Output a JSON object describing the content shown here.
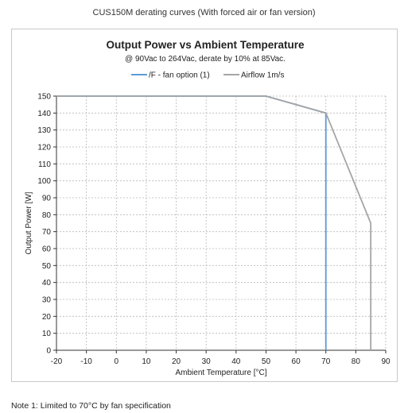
{
  "caption": "CUS150M derating curves (With forced air or fan version)",
  "note": "Note 1:  Limited to 70°C by fan specification",
  "chart_data": {
    "type": "line",
    "title": "Output Power vs Ambient Temperature",
    "subtitle": "@ 90Vac to 264Vac, derate by 10% at 85Vac.",
    "xlabel": "Ambient Temperature [°C]",
    "ylabel": "Output Power [W]",
    "xlim": [
      -20,
      90
    ],
    "ylim": [
      0,
      150
    ],
    "xticks": [
      -20,
      -10,
      0,
      10,
      20,
      30,
      40,
      50,
      60,
      70,
      80,
      90
    ],
    "yticks": [
      0,
      10,
      20,
      30,
      40,
      50,
      60,
      70,
      80,
      90,
      100,
      110,
      120,
      130,
      140,
      150
    ],
    "grid": true,
    "legend_position": "top",
    "series": [
      {
        "name": "/F - fan option (1)",
        "color": "#5b9bd5",
        "points": [
          [
            -20,
            150
          ],
          [
            50,
            150
          ],
          [
            70,
            140
          ],
          [
            70,
            0
          ]
        ]
      },
      {
        "name": "Airflow 1m/s",
        "color": "#a5a5a5",
        "points": [
          [
            -20,
            150
          ],
          [
            50,
            150
          ],
          [
            70,
            140
          ],
          [
            85,
            75
          ],
          [
            85,
            0
          ]
        ]
      }
    ]
  }
}
